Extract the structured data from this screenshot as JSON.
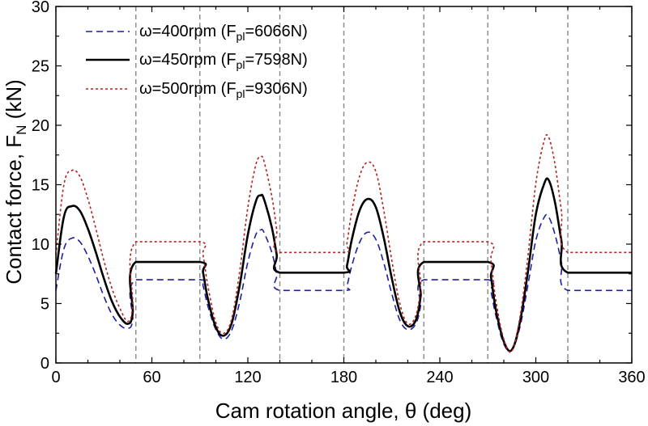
{
  "chart_data": {
    "type": "line",
    "title": "",
    "xlabel": "Cam rotation angle, θ (deg)",
    "ylabel": "Contact force, F",
    "ylabel_sub": "N",
    "ylabel_tail": " (kN)",
    "xlim": [
      0,
      360
    ],
    "ylim": [
      0,
      30
    ],
    "xticks": [
      0,
      60,
      120,
      180,
      240,
      300,
      360
    ],
    "yticks": [
      0,
      5,
      10,
      15,
      20,
      25,
      30
    ],
    "grid": false,
    "legend_position": "top-left",
    "vlines": [
      50,
      90,
      140,
      180,
      230,
      270,
      320
    ],
    "series": [
      {
        "legend_main": "ω=400rpm (F",
        "legend_sub": "pl",
        "legend_tail": "=6066N)",
        "color": "#1f1fa0",
        "dash": "8,5",
        "width": 1.6,
        "points": [
          [
            0,
            6.1
          ],
          [
            5,
            9.6
          ],
          [
            10,
            10.5
          ],
          [
            15,
            10.2
          ],
          [
            20,
            9.0
          ],
          [
            25,
            7.4
          ],
          [
            30,
            5.6
          ],
          [
            35,
            4.1
          ],
          [
            40,
            3.2
          ],
          [
            45,
            2.9
          ],
          [
            48,
            3.6
          ],
          [
            50,
            7.0
          ],
          [
            90,
            7.0
          ],
          [
            92,
            6.5
          ],
          [
            95,
            4.8
          ],
          [
            100,
            2.8
          ],
          [
            105,
            2.0
          ],
          [
            110,
            2.8
          ],
          [
            115,
            5.2
          ],
          [
            120,
            8.5
          ],
          [
            125,
            10.8
          ],
          [
            128,
            11.2
          ],
          [
            130,
            11.0
          ],
          [
            135,
            9.3
          ],
          [
            138,
            7.5
          ],
          [
            140,
            6.1
          ],
          [
            180,
            6.1
          ],
          [
            182,
            6.5
          ],
          [
            185,
            8.2
          ],
          [
            190,
            10.2
          ],
          [
            195,
            11.0
          ],
          [
            200,
            10.4
          ],
          [
            205,
            8.4
          ],
          [
            210,
            5.8
          ],
          [
            215,
            3.6
          ],
          [
            220,
            2.8
          ],
          [
            225,
            3.3
          ],
          [
            228,
            4.8
          ],
          [
            230,
            7.0
          ],
          [
            270,
            7.0
          ],
          [
            272,
            6.0
          ],
          [
            275,
            4.0
          ],
          [
            280,
            1.6
          ],
          [
            285,
            1.1
          ],
          [
            290,
            3.0
          ],
          [
            295,
            6.5
          ],
          [
            300,
            10.3
          ],
          [
            305,
            12.2
          ],
          [
            308,
            12.3
          ],
          [
            312,
            10.8
          ],
          [
            316,
            8.5
          ],
          [
            320,
            6.1
          ],
          [
            360,
            6.1
          ]
        ]
      },
      {
        "legend_main": "ω=450rpm (F",
        "legend_sub": "pl",
        "legend_tail": "=7598N)",
        "color": "#000000",
        "dash": "",
        "width": 2.6,
        "points": [
          [
            0,
            7.5
          ],
          [
            5,
            12.3
          ],
          [
            10,
            13.2
          ],
          [
            15,
            12.8
          ],
          [
            20,
            11.3
          ],
          [
            25,
            9.3
          ],
          [
            30,
            7.1
          ],
          [
            35,
            5.2
          ],
          [
            40,
            3.9
          ],
          [
            45,
            3.3
          ],
          [
            48,
            4.2
          ],
          [
            50,
            8.5
          ],
          [
            90,
            8.5
          ],
          [
            92,
            7.6
          ],
          [
            95,
            5.4
          ],
          [
            100,
            3.0
          ],
          [
            105,
            2.3
          ],
          [
            110,
            3.4
          ],
          [
            115,
            6.6
          ],
          [
            120,
            10.8
          ],
          [
            125,
            13.6
          ],
          [
            128,
            14.1
          ],
          [
            130,
            13.8
          ],
          [
            135,
            11.4
          ],
          [
            138,
            9.1
          ],
          [
            140,
            7.6
          ],
          [
            180,
            7.6
          ],
          [
            182,
            8.2
          ],
          [
            185,
            10.4
          ],
          [
            190,
            12.9
          ],
          [
            195,
            13.8
          ],
          [
            200,
            13.1
          ],
          [
            205,
            10.5
          ],
          [
            210,
            7.1
          ],
          [
            215,
            4.3
          ],
          [
            220,
            3.1
          ],
          [
            225,
            3.6
          ],
          [
            228,
            5.6
          ],
          [
            230,
            8.5
          ],
          [
            270,
            8.5
          ],
          [
            272,
            7.2
          ],
          [
            275,
            4.5
          ],
          [
            280,
            1.8
          ],
          [
            285,
            1.1
          ],
          [
            290,
            3.4
          ],
          [
            295,
            7.6
          ],
          [
            300,
            12.5
          ],
          [
            305,
            15.0
          ],
          [
            308,
            15.4
          ],
          [
            312,
            13.5
          ],
          [
            316,
            10.3
          ],
          [
            320,
            7.6
          ],
          [
            360,
            7.6
          ]
        ]
      },
      {
        "legend_main": "ω=500rpm (F",
        "legend_sub": "pl",
        "legend_tail": "=9306N)",
        "color": "#b22222",
        "dash": "3,3",
        "width": 1.6,
        "points": [
          [
            0,
            9.1
          ],
          [
            5,
            15.0
          ],
          [
            10,
            16.2
          ],
          [
            15,
            15.7
          ],
          [
            20,
            13.8
          ],
          [
            25,
            11.3
          ],
          [
            30,
            8.6
          ],
          [
            35,
            6.3
          ],
          [
            40,
            4.6
          ],
          [
            45,
            3.5
          ],
          [
            48,
            4.8
          ],
          [
            50,
            10.2
          ],
          [
            90,
            10.2
          ],
          [
            92,
            9.1
          ],
          [
            95,
            6.5
          ],
          [
            100,
            3.4
          ],
          [
            105,
            2.5
          ],
          [
            110,
            3.8
          ],
          [
            115,
            7.8
          ],
          [
            120,
            13.1
          ],
          [
            125,
            16.7
          ],
          [
            128,
            17.3
          ],
          [
            130,
            17.0
          ],
          [
            135,
            14.0
          ],
          [
            138,
            11.2
          ],
          [
            140,
            9.3
          ],
          [
            180,
            9.3
          ],
          [
            182,
            10.1
          ],
          [
            185,
            12.8
          ],
          [
            190,
            15.8
          ],
          [
            195,
            16.9
          ],
          [
            200,
            16.1
          ],
          [
            205,
            12.8
          ],
          [
            210,
            8.6
          ],
          [
            215,
            5.0
          ],
          [
            220,
            3.3
          ],
          [
            225,
            4.0
          ],
          [
            228,
            6.4
          ],
          [
            230,
            10.2
          ],
          [
            270,
            10.2
          ],
          [
            272,
            8.6
          ],
          [
            275,
            5.3
          ],
          [
            280,
            2.0
          ],
          [
            285,
            1.0
          ],
          [
            290,
            3.8
          ],
          [
            295,
            8.9
          ],
          [
            300,
            15.1
          ],
          [
            305,
            18.6
          ],
          [
            308,
            19.0
          ],
          [
            312,
            16.7
          ],
          [
            316,
            12.8
          ],
          [
            320,
            9.3
          ],
          [
            360,
            9.3
          ]
        ]
      }
    ]
  }
}
